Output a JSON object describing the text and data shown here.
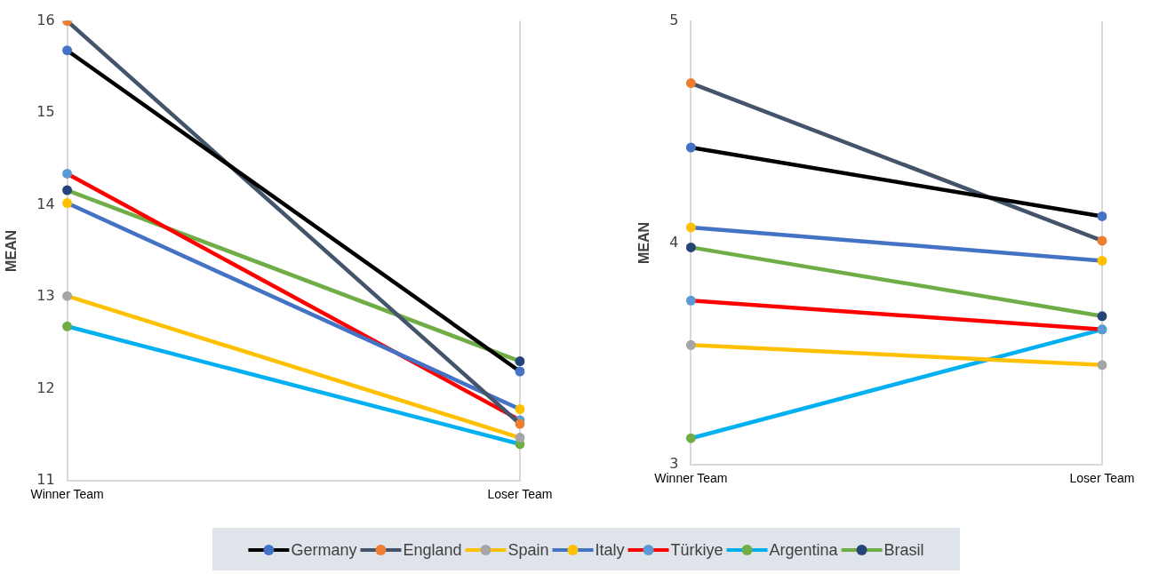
{
  "chart_data": [
    {
      "type": "line",
      "ylabel": "MEAN",
      "categories": [
        "Winner Team",
        "Loser Team"
      ],
      "ylim": [
        11,
        16
      ],
      "yticks": [
        11,
        12,
        13,
        14,
        15,
        16
      ],
      "grid": "x",
      "legend": "bottom",
      "marker": "circle",
      "line_style": "solid",
      "series": [
        {
          "name": "Germany",
          "color": "#000000",
          "colors": [
            "#4472c4",
            "#4472c4"
          ],
          "values": [
            15.68,
            12.19
          ]
        },
        {
          "name": "England",
          "color": "#44546a",
          "colors": [
            "#ed7d31",
            "#ed7d31"
          ],
          "values": [
            16.0,
            11.62
          ]
        },
        {
          "name": "Spain",
          "color": "#ffc000",
          "colors": [
            "#a5a5a5",
            "#a5a5a5"
          ],
          "values": [
            13.01,
            11.47
          ]
        },
        {
          "name": "Italy",
          "color": "#4472c4",
          "colors": [
            "#ffc000",
            "#ffc000"
          ],
          "values": [
            14.02,
            11.78
          ]
        },
        {
          "name": "Türkiye",
          "color": "#ff0000",
          "colors": [
            "#5b9bd5",
            "#5b9bd5"
          ],
          "values": [
            14.34,
            11.66
          ]
        },
        {
          "name": "Argentina",
          "color": "#00b0f0",
          "colors": [
            "#70ad47",
            "#70ad47"
          ],
          "values": [
            12.68,
            11.4
          ]
        },
        {
          "name": "Brasil",
          "color": "#70ad47",
          "colors": [
            "#264478",
            "#264478"
          ],
          "values": [
            14.16,
            12.3
          ]
        }
      ]
    },
    {
      "type": "line",
      "ylabel": "MEAN",
      "categories": [
        "Winner Team",
        "Loser Team"
      ],
      "ylim": [
        3,
        5
      ],
      "yticks": [
        3,
        4,
        5
      ],
      "grid": "x",
      "marker": "circle",
      "line_style": "solid",
      "series": [
        {
          "color": "#000000",
          "colors": [
            "#4472c4",
            "#4472c4"
          ],
          "values": [
            4.43,
            4.12
          ]
        },
        {
          "color": "#44546a",
          "colors": [
            "#ed7d31",
            "#ed7d31"
          ],
          "values": [
            4.72,
            4.01
          ]
        },
        {
          "color": "#ffc000",
          "colors": [
            "#a5a5a5",
            "#a5a5a5"
          ],
          "values": [
            3.54,
            3.45
          ]
        },
        {
          "color": "#4472c4",
          "colors": [
            "#ffc000",
            "#ffc000"
          ],
          "values": [
            4.07,
            3.92
          ]
        },
        {
          "color": "#ff0000",
          "colors": [
            "#5b9bd5",
            "#5b9bd5"
          ],
          "values": [
            3.74,
            3.61
          ]
        },
        {
          "color": "#00b0f0",
          "colors": [
            "#70ad47",
            "#70ad47"
          ],
          "values": [
            3.12,
            3.61
          ]
        },
        {
          "color": "#70ad47",
          "colors": [
            "#264478",
            "#264478"
          ],
          "values": [
            3.98,
            3.67
          ]
        }
      ]
    }
  ]
}
